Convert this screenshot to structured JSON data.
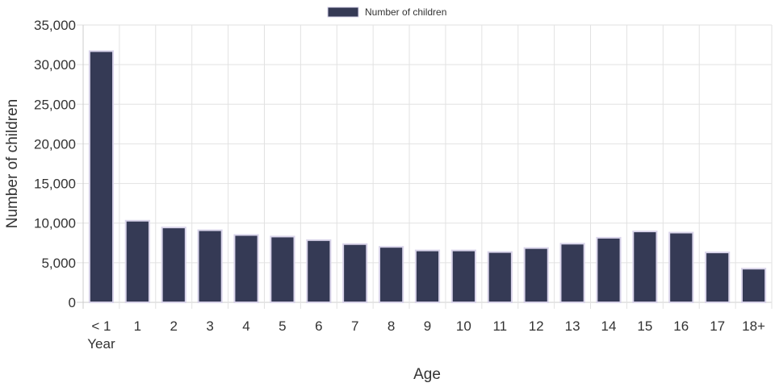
{
  "chart_data": {
    "type": "bar",
    "title": "",
    "xlabel": "Age",
    "ylabel": "Number of children",
    "ylim": [
      0,
      35000
    ],
    "y_ticks": [
      "0",
      "5,000",
      "10,000",
      "15,000",
      "20,000",
      "25,000",
      "30,000",
      "35,000"
    ],
    "y_tick_values": [
      0,
      5000,
      10000,
      15000,
      20000,
      25000,
      30000,
      35000
    ],
    "categories": [
      "< 1 Year",
      "1",
      "2",
      "3",
      "4",
      "5",
      "6",
      "7",
      "8",
      "9",
      "10",
      "11",
      "12",
      "13",
      "14",
      "15",
      "16",
      "17",
      "18+"
    ],
    "category_lines": [
      [
        "< 1",
        "Year"
      ],
      [
        "1"
      ],
      [
        "2"
      ],
      [
        "3"
      ],
      [
        "4"
      ],
      [
        "5"
      ],
      [
        "6"
      ],
      [
        "7"
      ],
      [
        "8"
      ],
      [
        "9"
      ],
      [
        "10"
      ],
      [
        "11"
      ],
      [
        "12"
      ],
      [
        "13"
      ],
      [
        "14"
      ],
      [
        "15"
      ],
      [
        "16"
      ],
      [
        "17"
      ],
      [
        "18+"
      ]
    ],
    "series": [
      {
        "name": "Number of children",
        "values": [
          31700,
          10300,
          9450,
          9100,
          8500,
          8300,
          7850,
          7350,
          7000,
          6550,
          6550,
          6350,
          6850,
          7400,
          8150,
          8950,
          8800,
          6300,
          4250
        ]
      }
    ],
    "grid": true,
    "legend_position": "top-center",
    "colors": {
      "bar_fill": "#353a55",
      "bar_stroke": "#d9d4ea",
      "grid": "#e2e2e2",
      "axis": "#cccccc",
      "text": "#333333"
    }
  }
}
